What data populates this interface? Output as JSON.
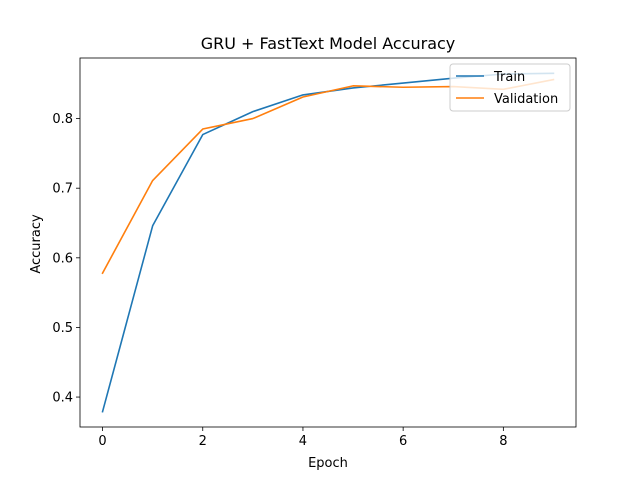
{
  "chart_data": {
    "type": "line",
    "title": "GRU + FastText Model Accuracy",
    "xlabel": "Epoch",
    "ylabel": "Accuracy",
    "x": [
      0,
      1,
      2,
      3,
      4,
      5,
      6,
      7,
      8,
      9
    ],
    "xticks": [
      0,
      2,
      4,
      6,
      8
    ],
    "yticks": [
      0.4,
      0.5,
      0.6,
      0.7,
      0.8
    ],
    "xlim": [
      -0.45,
      9.45
    ],
    "ylim": [
      0.357,
      0.887
    ],
    "grid": false,
    "legend_position": "top-right",
    "series": [
      {
        "name": "Train",
        "color": "#1f77b4",
        "values": [
          0.379,
          0.646,
          0.777,
          0.81,
          0.834,
          0.844,
          0.851,
          0.858,
          0.864,
          0.865
        ]
      },
      {
        "name": "Validation",
        "color": "#ff7f0e",
        "values": [
          0.578,
          0.711,
          0.785,
          0.8,
          0.831,
          0.847,
          0.845,
          0.846,
          0.842,
          0.856
        ]
      }
    ]
  }
}
